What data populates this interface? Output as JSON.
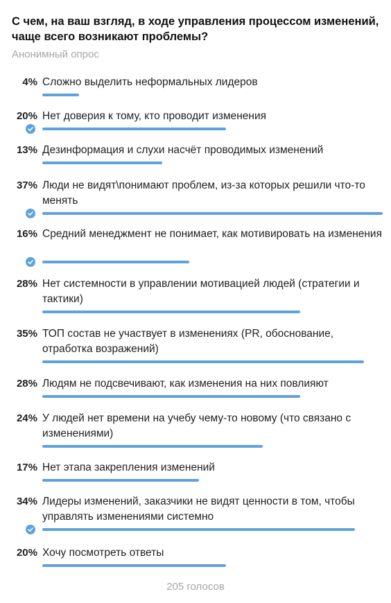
{
  "poll": {
    "question": "С чем, на ваш взгляд, в ходе управления процессом изменений, чаще всего возникают проблемы?",
    "type_label": "Анонимный опрос",
    "total_votes": "205 голосов",
    "bar_color": "#5fa1db",
    "check_icon": "check-circle-icon",
    "options": [
      {
        "percent": "4%",
        "value": 4,
        "text": "Сложно выделить неформальных лидеров",
        "selected": false
      },
      {
        "percent": "20%",
        "value": 20,
        "text": "Нет доверия к тому, кто проводит изменения",
        "selected": true
      },
      {
        "percent": "13%",
        "value": 13,
        "text": "Дезинформация и слухи насчёт проводимых изменений",
        "selected": false
      },
      {
        "percent": "37%",
        "value": 37,
        "text": "Люди не видят\\понимают проблем, из-за которых решили что-то менять",
        "selected": true
      },
      {
        "percent": "16%",
        "value": 16,
        "text": "Средний менеджмент не понимает, как мотивировать на изменения",
        "selected": true
      },
      {
        "percent": "28%",
        "value": 28,
        "text": "Нет системности в управлении мотивацией людей (стратегии и тактики)",
        "selected": false
      },
      {
        "percent": "35%",
        "value": 35,
        "text": "ТОП состав не участвует в изменениях (PR, обоснование, отработка возражений)",
        "selected": false
      },
      {
        "percent": "28%",
        "value": 28,
        "text": "Людям не подсвечивают, как изменения на них повлияют",
        "selected": false
      },
      {
        "percent": "24%",
        "value": 24,
        "text": "У людей нет времени на учебу чему-то новому (что связано с изменениями)",
        "selected": false
      },
      {
        "percent": "17%",
        "value": 17,
        "text": "Нет этапа закрепления изменений",
        "selected": false
      },
      {
        "percent": "34%",
        "value": 34,
        "text": "Лидеры изменений, заказчики не видят ценности в том, чтобы управлять изменениями системно",
        "selected": true
      },
      {
        "percent": "20%",
        "value": 20,
        "text": "Хочу посмотреть ответы",
        "selected": false
      }
    ]
  }
}
